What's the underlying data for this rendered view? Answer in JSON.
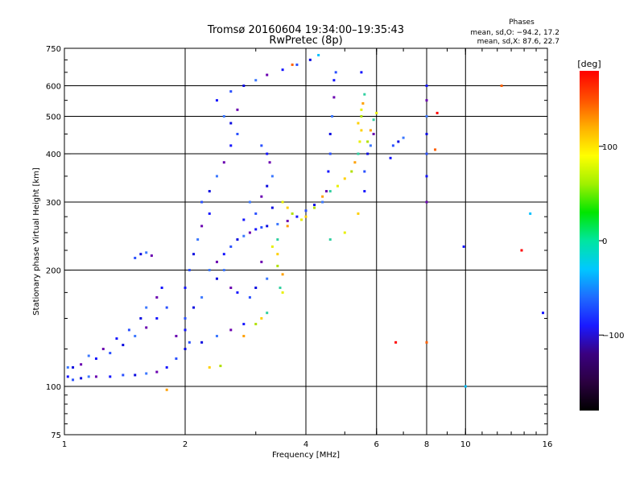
{
  "chart_data": {
    "type": "scatter",
    "title": "Tromsø 20160604 19:34:00–19:35:43",
    "subtitle": "RwPretec (8p)",
    "xlabel": "Frequency [MHz]",
    "ylabel": "Stationary phase Virtual Height [km]",
    "x_scale": "log",
    "y_scale": "log",
    "xlim": [
      1,
      16
    ],
    "ylim": [
      75,
      750
    ],
    "grid": true,
    "x_ticks": [
      "1",
      "2",
      "4",
      "6",
      "8",
      "10",
      "16"
    ],
    "x_tick_values": [
      1,
      2,
      4,
      6,
      8,
      10,
      16
    ],
    "y_ticks": [
      "750",
      "600",
      "500",
      "400",
      "300",
      "200",
      "100",
      "75"
    ],
    "y_tick_values": [
      750,
      600,
      500,
      400,
      300,
      200,
      100,
      75
    ],
    "grid_x": [
      2,
      4,
      6,
      8,
      10
    ],
    "grid_y": [
      100,
      200,
      300,
      400,
      500,
      600
    ],
    "phase_box": {
      "title": "Phases",
      "line1": "mean, sd,O: −94.2, 17.2",
      "line2": "mean, sd,X:  87.6, 22.7"
    },
    "colorbar": {
      "label": "[deg]",
      "range": [
        -180,
        180
      ],
      "ticks": [
        "100",
        "0",
        "−100"
      ],
      "tick_values": [
        100,
        0,
        -100
      ],
      "colors": [
        "#000000",
        "#2b0040",
        "#3a0080",
        "#1a1aff",
        "#1e6bff",
        "#00c8ff",
        "#00e6a0",
        "#00e600",
        "#a0f000",
        "#ffff00",
        "#ffb000",
        "#ff5000",
        "#ff0000"
      ]
    },
    "series": [
      {
        "points": [
          [
            1.02,
            106
          ],
          [
            1.05,
            104
          ],
          [
            1.1,
            105
          ],
          [
            1.15,
            106
          ],
          [
            1.2,
            106
          ],
          [
            1.3,
            106
          ],
          [
            1.4,
            107
          ],
          [
            1.5,
            107
          ],
          [
            1.6,
            108
          ],
          [
            1.7,
            109
          ],
          [
            1.8,
            112
          ],
          [
            1.9,
            118
          ],
          [
            2.0,
            125
          ],
          [
            1.02,
            112
          ],
          [
            1.1,
            114
          ],
          [
            1.2,
            118
          ],
          [
            1.3,
            122
          ],
          [
            1.4,
            128
          ],
          [
            1.5,
            135
          ],
          [
            1.6,
            142
          ],
          [
            1.7,
            150
          ],
          [
            1.8,
            160
          ],
          [
            1.05,
            112
          ],
          [
            1.15,
            120
          ],
          [
            1.25,
            125
          ],
          [
            1.35,
            133
          ],
          [
            1.45,
            140
          ],
          [
            1.55,
            150
          ],
          [
            1.6,
            160
          ],
          [
            1.7,
            170
          ],
          [
            1.75,
            180
          ],
          [
            1.5,
            215
          ],
          [
            1.55,
            220
          ],
          [
            1.6,
            222
          ],
          [
            1.65,
            218
          ],
          [
            2.0,
            180
          ],
          [
            2.05,
            200
          ],
          [
            2.1,
            220
          ],
          [
            2.15,
            240
          ],
          [
            2.2,
            260
          ],
          [
            2.3,
            280
          ],
          [
            2.0,
            150
          ],
          [
            2.1,
            160
          ],
          [
            2.2,
            170
          ],
          [
            1.9,
            135
          ],
          [
            2.0,
            140
          ],
          [
            2.05,
            130
          ],
          [
            2.2,
            130
          ],
          [
            2.4,
            135
          ],
          [
            2.6,
            140
          ],
          [
            2.8,
            145
          ],
          [
            2.2,
            300
          ],
          [
            2.3,
            320
          ],
          [
            2.4,
            350
          ],
          [
            2.5,
            380
          ],
          [
            2.6,
            420
          ],
          [
            2.7,
            450
          ],
          [
            2.6,
            480
          ],
          [
            2.5,
            500
          ],
          [
            2.7,
            520
          ],
          [
            2.4,
            550
          ],
          [
            2.6,
            580
          ],
          [
            2.8,
            600
          ],
          [
            3.0,
            620
          ],
          [
            3.2,
            640
          ],
          [
            3.5,
            660
          ],
          [
            3.8,
            680
          ],
          [
            4.1,
            700
          ],
          [
            2.3,
            200
          ],
          [
            2.4,
            210
          ],
          [
            2.5,
            220
          ],
          [
            2.6,
            230
          ],
          [
            2.7,
            240
          ],
          [
            2.8,
            245
          ],
          [
            2.9,
            250
          ],
          [
            3.0,
            255
          ],
          [
            3.1,
            258
          ],
          [
            3.2,
            260
          ],
          [
            3.4,
            263
          ],
          [
            3.6,
            268
          ],
          [
            3.8,
            275
          ],
          [
            4.0,
            285
          ],
          [
            4.2,
            295
          ],
          [
            4.4,
            300
          ],
          [
            4.5,
            320
          ],
          [
            4.55,
            360
          ],
          [
            4.6,
            400
          ],
          [
            4.6,
            450
          ],
          [
            4.65,
            500
          ],
          [
            4.7,
            560
          ],
          [
            4.7,
            620
          ],
          [
            4.75,
            650
          ],
          [
            3.2,
            330
          ],
          [
            3.3,
            350
          ],
          [
            3.25,
            380
          ],
          [
            3.2,
            400
          ],
          [
            3.1,
            420
          ],
          [
            2.4,
            190
          ],
          [
            2.5,
            200
          ],
          [
            2.6,
            180
          ],
          [
            2.7,
            175
          ],
          [
            2.9,
            170
          ],
          [
            3.0,
            180
          ],
          [
            3.2,
            190
          ],
          [
            3.1,
            210
          ],
          [
            2.8,
            270
          ],
          [
            3.0,
            280
          ],
          [
            3.3,
            290
          ],
          [
            2.9,
            300
          ],
          [
            3.1,
            310
          ],
          [
            5.6,
            320
          ],
          [
            5.6,
            360
          ],
          [
            5.7,
            400
          ],
          [
            5.8,
            420
          ],
          [
            5.9,
            450
          ],
          [
            6.5,
            390
          ],
          [
            6.6,
            420
          ],
          [
            6.8,
            430
          ],
          [
            7.0,
            440
          ],
          [
            8.0,
            300
          ],
          [
            8.0,
            350
          ],
          [
            8.0,
            400
          ],
          [
            8.0,
            450
          ],
          [
            8.0,
            500
          ],
          [
            8.0,
            550
          ],
          [
            8.0,
            600
          ]
        ]
      },
      {
        "points": [
          [
            3.5,
            300
          ],
          [
            3.6,
            290
          ],
          [
            3.7,
            280
          ],
          [
            3.6,
            260
          ],
          [
            3.4,
            240
          ],
          [
            3.3,
            230
          ],
          [
            3.4,
            220
          ],
          [
            3.4,
            205
          ],
          [
            3.5,
            195
          ],
          [
            3.45,
            180
          ],
          [
            3.5,
            175
          ],
          [
            3.1,
            150
          ],
          [
            3.0,
            145
          ],
          [
            2.8,
            135
          ],
          [
            3.2,
            155
          ],
          [
            3.9,
            270
          ],
          [
            4.0,
            275
          ],
          [
            4.2,
            290
          ],
          [
            4.4,
            310
          ],
          [
            4.6,
            320
          ],
          [
            4.8,
            330
          ],
          [
            5.0,
            345
          ],
          [
            5.2,
            360
          ],
          [
            5.3,
            380
          ],
          [
            5.4,
            400
          ],
          [
            5.45,
            430
          ],
          [
            5.5,
            460
          ],
          [
            5.5,
            500
          ],
          [
            5.55,
            540
          ],
          [
            5.6,
            570
          ],
          [
            5.5,
            520
          ],
          [
            5.4,
            480
          ],
          [
            5.7,
            430
          ],
          [
            5.8,
            460
          ],
          [
            5.9,
            490
          ],
          [
            6.0,
            510
          ],
          [
            2.3,
            112
          ],
          [
            2.45,
            113
          ],
          [
            1.8,
            98
          ],
          [
            4.6,
            240
          ],
          [
            5.0,
            250
          ],
          [
            5.4,
            280
          ]
        ]
      },
      {
        "points": [
          [
            3.7,
            680
          ],
          [
            4.3,
            720
          ],
          [
            5.5,
            650
          ],
          [
            8.5,
            510
          ],
          [
            12.3,
            600
          ],
          [
            14.5,
            280
          ],
          [
            15.6,
            155
          ],
          [
            6.7,
            130
          ],
          [
            8.0,
            130
          ],
          [
            10.0,
            100
          ],
          [
            9.9,
            230
          ],
          [
            13.8,
            225
          ],
          [
            8.4,
            410
          ]
        ]
      }
    ]
  }
}
